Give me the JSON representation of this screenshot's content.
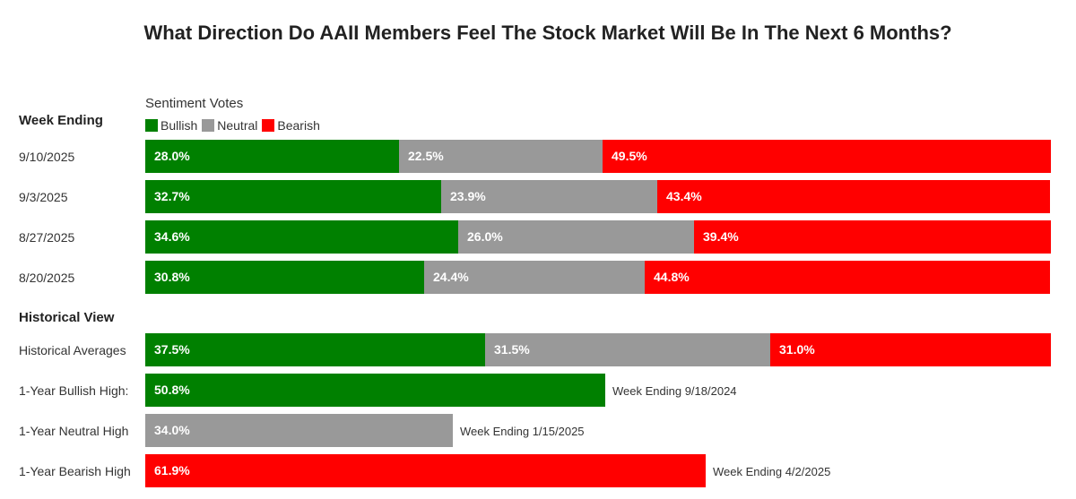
{
  "chart_data": {
    "type": "bar",
    "orientation": "horizontal-stacked",
    "title": "What Direction Do AAII Members Feel The Stock Market Will Be In The Next 6 Months?",
    "legend_title": "Sentiment Votes",
    "legend_placement": "top-left",
    "grid": false,
    "series": [
      {
        "name": "Bullish",
        "color": "#008000"
      },
      {
        "name": "Neutral",
        "color": "#999999"
      },
      {
        "name": "Bearish",
        "color": "#ff0000"
      }
    ],
    "xlim": [
      0,
      100
    ],
    "sections": [
      {
        "header": "Week Ending",
        "rows": [
          {
            "label": "9/10/2025",
            "values": [
              28.0,
              22.5,
              49.5
            ],
            "value_labels": [
              "28.0%",
              "22.5%",
              "49.5%"
            ]
          },
          {
            "label": "9/3/2025",
            "values": [
              32.7,
              23.9,
              43.4
            ],
            "value_labels": [
              "32.7%",
              "23.9%",
              "43.4%"
            ]
          },
          {
            "label": "8/27/2025",
            "values": [
              34.6,
              26.0,
              39.4
            ],
            "value_labels": [
              "34.6%",
              "26.0%",
              "39.4%"
            ]
          },
          {
            "label": "8/20/2025",
            "values": [
              30.8,
              24.4,
              44.8
            ],
            "value_labels": [
              "30.8%",
              "24.4%",
              "44.8%"
            ]
          }
        ]
      },
      {
        "header": "Historical View",
        "rows": [
          {
            "label": "Historical Averages",
            "values": [
              37.5,
              31.5,
              31.0
            ],
            "value_labels": [
              "37.5%",
              "31.5%",
              "31.0%"
            ]
          },
          {
            "label": "1-Year Bullish High:",
            "values": [
              50.8,
              0,
              0
            ],
            "value_labels": [
              "50.8%",
              "",
              ""
            ],
            "note": "Week Ending 9/18/2024"
          },
          {
            "label": "1-Year Neutral High",
            "values": [
              0,
              34.0,
              0
            ],
            "value_labels": [
              "",
              "34.0%",
              ""
            ],
            "note": "Week Ending 1/15/2025"
          },
          {
            "label": "1-Year Bearish High",
            "values": [
              0,
              0,
              61.9
            ],
            "value_labels": [
              "",
              "",
              "61.9%"
            ],
            "note": "Week Ending 4/2/2025"
          }
        ]
      }
    ]
  }
}
